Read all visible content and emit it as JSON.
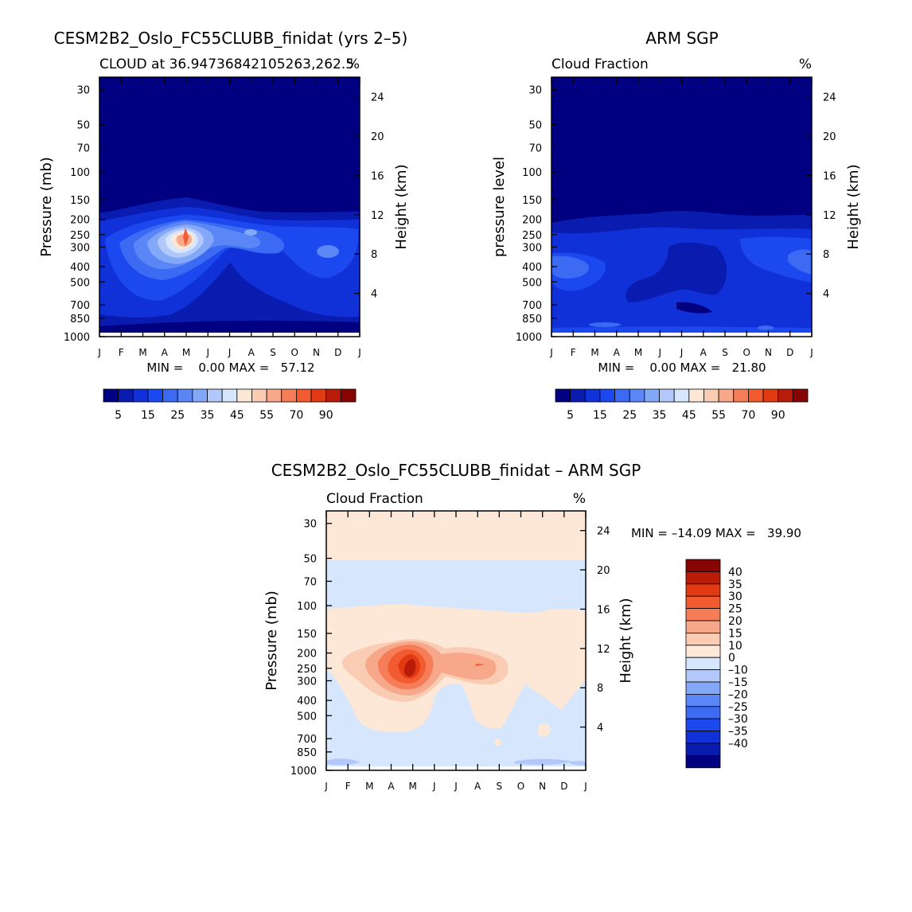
{
  "chart_data": [
    {
      "type": "heatmap",
      "title": "CESM2B2_Oslo_FC55CLUBB_finidat (yrs 2–5)",
      "subtitle_left": "CLOUD at 36.94736842105263,262.5",
      "subtitle_right": "%",
      "xlabel": "",
      "ylabel": "Pressure (mb)",
      "ylabel_right": "Height (km)",
      "x_categories": [
        "J",
        "F",
        "M",
        "A",
        "M",
        "J",
        "J",
        "A",
        "S",
        "O",
        "N",
        "D",
        "J"
      ],
      "y_ticks_mb": [
        30,
        50,
        70,
        100,
        150,
        200,
        250,
        300,
        400,
        500,
        700,
        850,
        1000
      ],
      "y_ticks_km": [
        24,
        20,
        16,
        12,
        8,
        4
      ],
      "stats": "MIN =    0.00 MAX =   57.12",
      "colorbar_labels": [
        "5",
        "15",
        "25",
        "35",
        "45",
        "55",
        "70",
        "90"
      ],
      "levels": [
        0,
        5,
        10,
        15,
        20,
        25,
        30,
        35,
        40,
        45,
        50,
        55,
        60,
        70,
        80,
        90,
        100
      ],
      "peak": {
        "month": "M",
        "pressure_mb": 250,
        "value": 57.12
      }
    },
    {
      "type": "heatmap",
      "title": "ARM SGP",
      "subtitle_left": "Cloud Fraction",
      "subtitle_right": "%",
      "xlabel": "",
      "ylabel": "pressure level",
      "ylabel_right": "Height (km)",
      "x_categories": [
        "J",
        "F",
        "M",
        "A",
        "M",
        "J",
        "J",
        "A",
        "S",
        "O",
        "N",
        "D",
        "J"
      ],
      "y_ticks_mb": [
        30,
        50,
        70,
        100,
        150,
        200,
        250,
        300,
        400,
        500,
        700,
        850,
        1000
      ],
      "y_ticks_km": [
        24,
        20,
        16,
        12,
        8,
        4
      ],
      "stats": "MIN =    0.00 MAX =   21.80",
      "colorbar_labels": [
        "5",
        "15",
        "25",
        "35",
        "45",
        "55",
        "70",
        "90"
      ],
      "levels": [
        0,
        5,
        10,
        15,
        20,
        25,
        30,
        35,
        40,
        45,
        50,
        55,
        60,
        70,
        80,
        90,
        100
      ]
    },
    {
      "type": "heatmap",
      "title": "CESM2B2_Oslo_FC55CLUBB_finidat – ARM SGP",
      "subtitle_left": "Cloud Fraction",
      "subtitle_right": "%",
      "xlabel": "",
      "ylabel": "Pressure (mb)",
      "ylabel_right": "Height (km)",
      "x_categories": [
        "J",
        "F",
        "M",
        "A",
        "M",
        "J",
        "J",
        "A",
        "S",
        "O",
        "N",
        "D",
        "J"
      ],
      "y_ticks_mb": [
        30,
        50,
        70,
        100,
        150,
        200,
        250,
        300,
        400,
        500,
        700,
        850,
        1000
      ],
      "y_ticks_km": [
        24,
        20,
        16,
        12,
        8,
        4
      ],
      "stats": "MIN = –14.09 MAX =   39.90",
      "colorbar_labels": [
        "40",
        "35",
        "30",
        "25",
        "20",
        "15",
        "10",
        "0",
        "–10",
        "–15",
        "–20",
        "–25",
        "–30",
        "–35",
        "–40"
      ],
      "levels": [
        -40,
        -35,
        -30,
        -25,
        -20,
        -15,
        -10,
        0,
        10,
        15,
        20,
        25,
        30,
        35,
        40
      ]
    }
  ],
  "colors": {
    "seq": [
      "#000080",
      "#0a1bb0",
      "#1030d8",
      "#1c48f0",
      "#3c6af2",
      "#5a87f5",
      "#83a8f8",
      "#b2c8fb",
      "#d6e6fd",
      "#fde8d8",
      "#fbccb4",
      "#f8a88a",
      "#f57e58",
      "#f25a30",
      "#e23a12",
      "#b81c08",
      "#860404"
    ],
    "div": [
      "#860404",
      "#b81c08",
      "#e23a12",
      "#f25a30",
      "#f57e58",
      "#f8a88a",
      "#fbccb4",
      "#fde8d8",
      "#d6e6fd",
      "#b2c8fb",
      "#83a8f8",
      "#5a87f5",
      "#3c6af2",
      "#1c48f0",
      "#1030d8",
      "#0a1bb0",
      "#000080"
    ]
  }
}
